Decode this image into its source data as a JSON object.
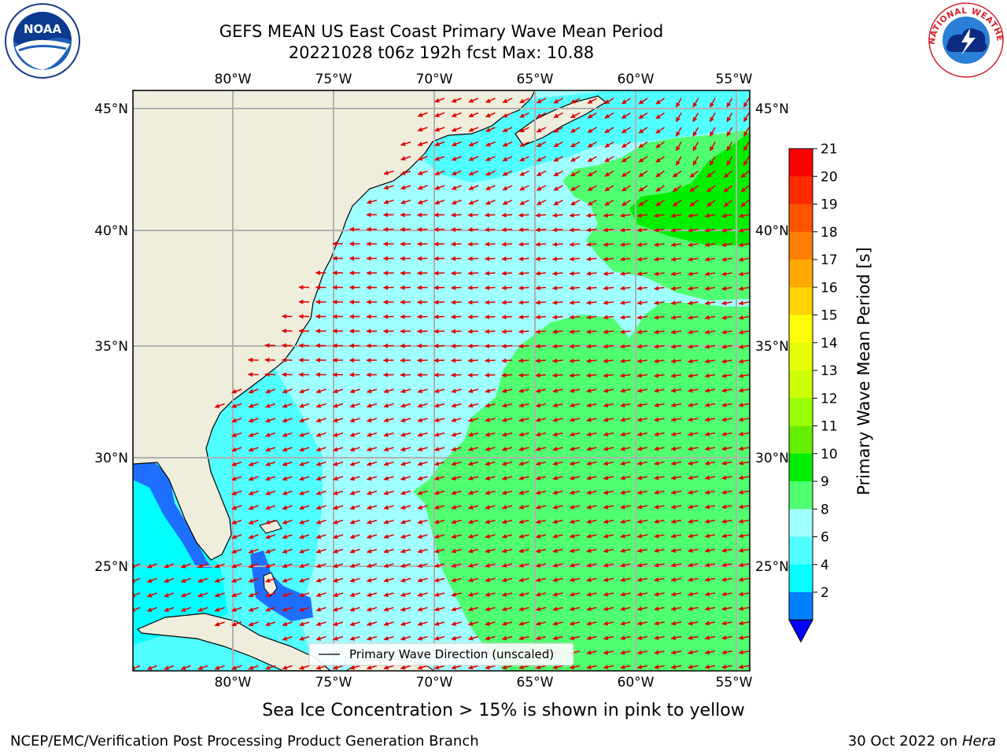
{
  "header": {
    "title_line1": "GEFS MEAN US East Coast Primary Wave Mean Period",
    "title_line2": "20221028 t06z 192h fcst   Max: 10.88"
  },
  "logos": {
    "left": "NOAA",
    "right_text": "NATIONAL WEATHER SERVICE"
  },
  "map": {
    "lon_labels": [
      "80°W",
      "75°W",
      "70°W",
      "65°W",
      "60°W",
      "55°W"
    ],
    "lat_labels": [
      "45°N",
      "40°N",
      "35°N",
      "30°N",
      "25°N"
    ],
    "legend_label": "Primary Wave Direction (unscaled)",
    "arrow_color": "#e00000",
    "land_color": "#efeddc"
  },
  "colorbar": {
    "label": "Primary Wave Mean Period [s]",
    "ticks": [
      "21",
      "20",
      "19",
      "18",
      "17",
      "16",
      "15",
      "14",
      "13",
      "12",
      "11",
      "10",
      "9",
      "8",
      "6",
      "4",
      "2"
    ],
    "colors": [
      "#fe0000",
      "#ff2a00",
      "#ff5500",
      "#ff8000",
      "#ffaa00",
      "#ffd400",
      "#ffff00",
      "#e6ff00",
      "#ccff00",
      "#99ff00",
      "#66ee00",
      "#00ee00",
      "#50ff70",
      "#a0ffff",
      "#50ffff",
      "#00ffff",
      "#0080ff"
    ],
    "under_color": "#0000ff"
  },
  "subtitle": "Sea Ice Concentration > 15% is shown in pink to yellow",
  "footer": {
    "left": "NCEP/EMC/Verification Post Processing Product Generation Branch",
    "right_prefix": "30 Oct 2022 on ",
    "right_machine": "Hera"
  }
}
